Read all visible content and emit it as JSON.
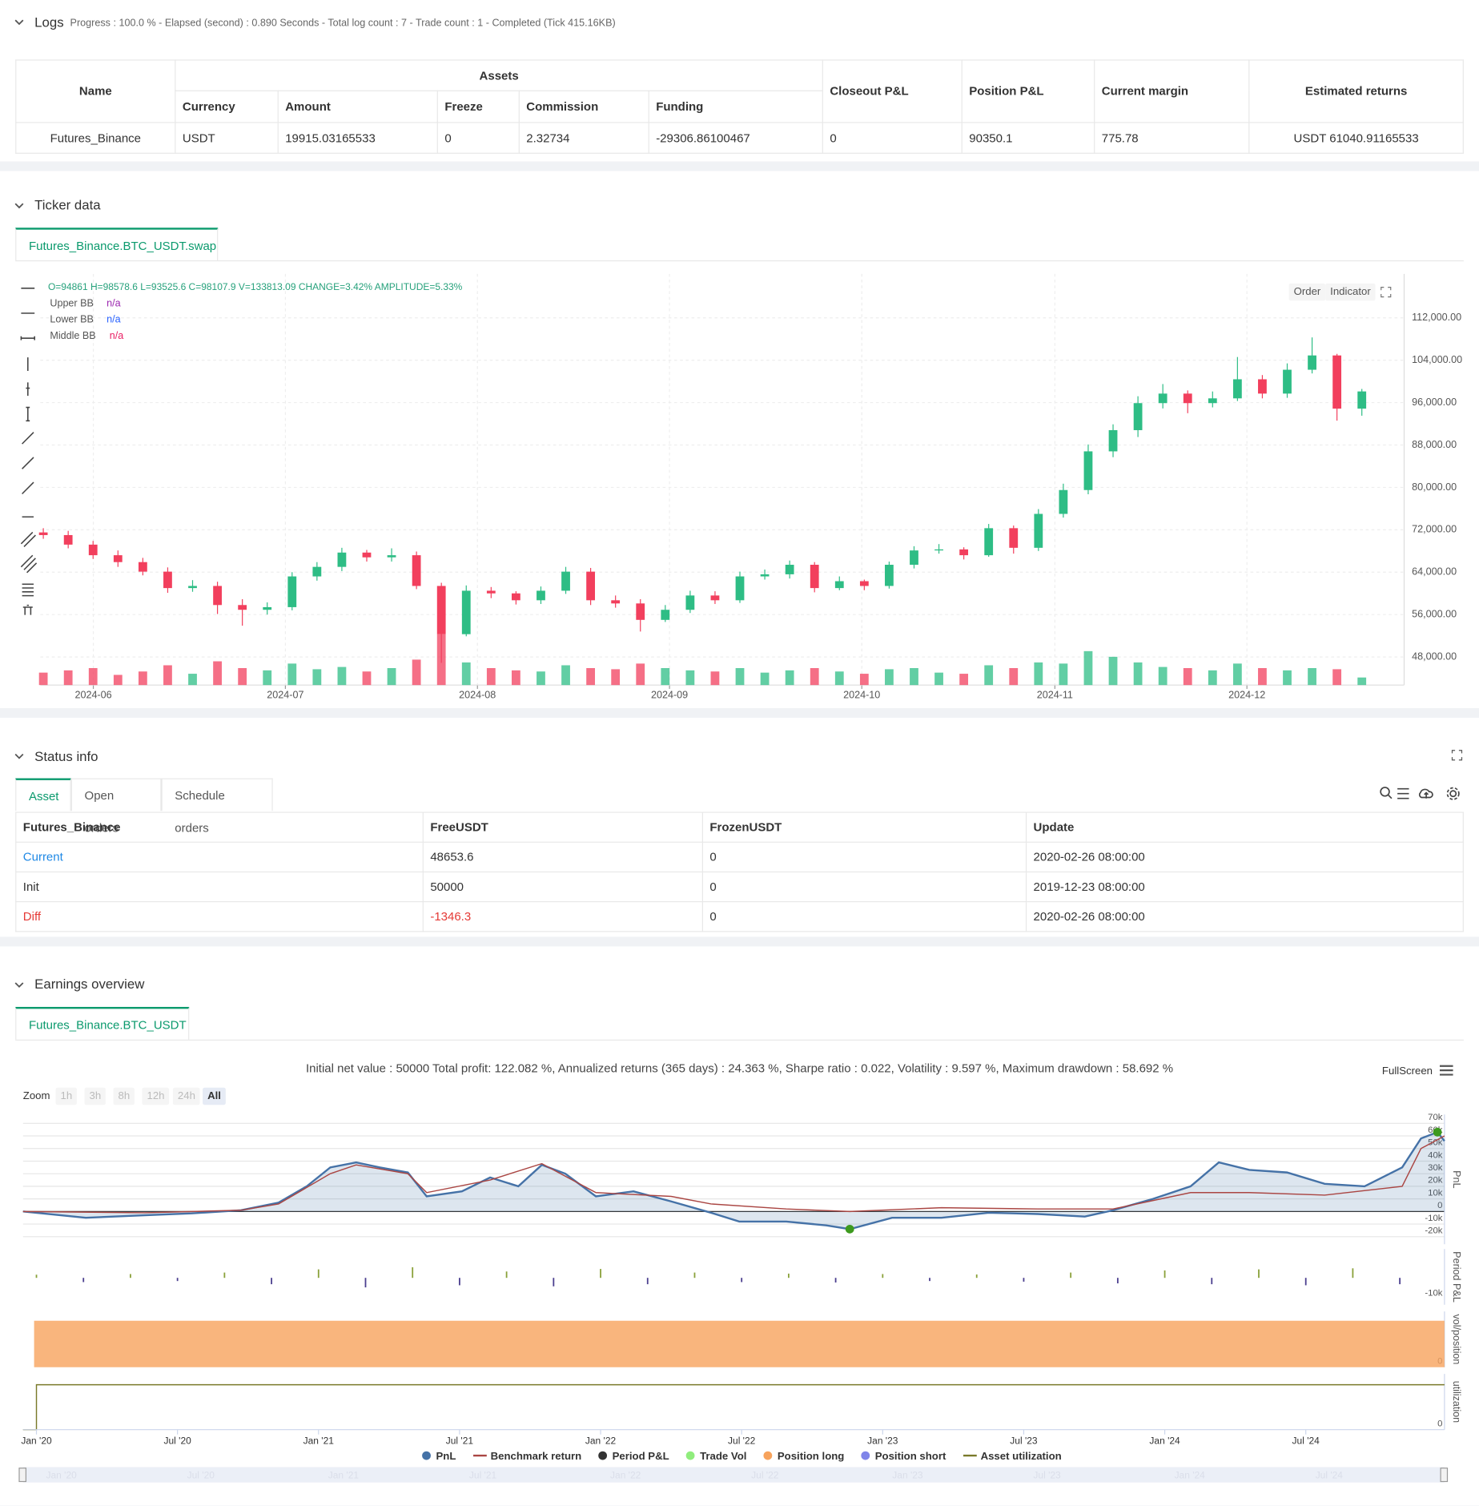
{
  "logs": {
    "title": "Logs",
    "summary": "Progress : 100.0 % - Elapsed (second) : 0.890  Seconds - Total log count : 7 - Trade count : 1 - Completed (Tick 415.16KB)",
    "table": {
      "columns": [
        "Name",
        "Assets",
        "Closeout P&L",
        "Position P&L",
        "Current margin",
        "Estimated returns"
      ],
      "asset_columns": [
        "Currency",
        "Amount",
        "Freeze",
        "Commission",
        "Funding"
      ],
      "rows": [
        [
          "Futures_Binance",
          "USDT",
          "19915.03165533",
          "0",
          "2.32734",
          "-29306.86100467",
          "0",
          "90350.1",
          "775.78",
          "USDT 61040.91165533"
        ]
      ]
    }
  },
  "ticker": {
    "title": "Ticker data",
    "tab": "Futures_Binance.BTC_USDT.swap",
    "buttons": [
      "Order",
      "Indicator"
    ]
  },
  "status": {
    "title": "Status info",
    "tabs": [
      "Asset",
      "Open orders",
      "Schedule orders"
    ],
    "table": {
      "headers": [
        "Futures_Binance",
        "FreeUSDT",
        "FrozenUSDT",
        "Update"
      ],
      "rows": [
        [
          "Current",
          "48653.6",
          "0",
          "2020-02-26 08:00:00"
        ],
        [
          "Init",
          "50000",
          "0",
          "2019-12-23 08:00:00"
        ],
        [
          "Diff",
          "-1346.3",
          "0",
          "2020-02-26 08:00:00"
        ]
      ]
    }
  },
  "earnings": {
    "title": "Earnings overview",
    "tab": "Futures_Binance.BTC_USDT",
    "summary": "Initial net value : 50000 Total profit: 122.082 %, Annualized returns (365 days) : 24.363 %, Sharpe ratio : 0.022, Volatility : 9.597 %, Maximum drawdown : 58.692 %",
    "zoom_label": "Zoom",
    "zoom_buttons": [
      "1h",
      "3h",
      "8h",
      "12h",
      "24h",
      "All"
    ],
    "fullscreen": "FullScreen",
    "legend": [
      {
        "name": "Trade Vol",
        "color": "#90ed7d",
        "legend_symbol": "circle"
      },
      {
        "name": "Position short",
        "color": "#8085e9",
        "legend_symbol": "circle"
      }
    ]
  },
  "chart_data": [
    {
      "type": "candlestick",
      "info": "O=94861 H=98578.6 L=93525.6 C=98107.9 V=133813.09 CHANGE=3.42% AMPLITUDE=5.33%",
      "indicators": [
        {
          "name": "Upper BB",
          "value": "n/a",
          "color": "#9c27b0"
        },
        {
          "name": "Lower BB",
          "value": "n/a",
          "color": "#2962ff"
        },
        {
          "name": "Middle BB",
          "value": "n/a",
          "color": "#e91e63"
        }
      ],
      "up_color": "#2ebd85",
      "down_color": "#f23f5d",
      "categories": [
        null,
        null,
        null,
        null,
        null,
        null,
        null,
        null,
        null,
        null,
        null,
        null,
        null,
        null,
        null,
        null,
        null,
        null,
        null,
        null,
        null,
        null,
        null,
        null,
        null,
        null,
        null,
        null,
        null,
        null,
        null,
        null,
        null,
        null,
        null,
        null,
        null,
        null,
        null,
        null,
        null,
        null,
        null,
        null,
        null,
        null,
        null,
        null,
        null,
        null,
        null,
        null,
        null,
        null
      ],
      "open": [
        71500,
        71000,
        69200,
        67200,
        65900,
        64100,
        61000,
        61400,
        57800,
        56900,
        57400,
        63200,
        65000,
        67700,
        66800,
        67200,
        61400,
        52300,
        60500,
        60000,
        58700,
        60500,
        64100,
        58700,
        58100,
        55000,
        56900,
        59600,
        58700,
        63200,
        63600,
        65400,
        61000,
        62300,
        61400,
        65400,
        68100,
        68300,
        67200,
        72300,
        68600,
        75000,
        79500,
        86800,
        90800,
        95900,
        97700,
        95900,
        96800,
        100400,
        97700,
        102200,
        104900,
        94861
      ],
      "high": [
        72300,
        71800,
        69900,
        68100,
        66700,
        64900,
        62500,
        62200,
        58900,
        58300,
        64000,
        65900,
        68600,
        68200,
        68500,
        67900,
        62000,
        61500,
        61200,
        60400,
        61300,
        65000,
        64800,
        59600,
        58900,
        57800,
        60500,
        60400,
        64100,
        64500,
        66200,
        65900,
        63200,
        62600,
        66000,
        68900,
        69300,
        68700,
        73100,
        72800,
        75900,
        80700,
        88100,
        91900,
        97200,
        99500,
        98300,
        98100,
        104600,
        101200,
        103400,
        108300,
        105200,
        98578.6
      ],
      "low": [
        70300,
        68500,
        66500,
        65000,
        63400,
        60100,
        60300,
        56100,
        53900,
        56000,
        56800,
        62400,
        64200,
        66000,
        66000,
        60800,
        46900,
        51900,
        59100,
        57900,
        58000,
        59900,
        57800,
        57300,
        52800,
        54600,
        56300,
        58000,
        58200,
        62600,
        62800,
        60200,
        60600,
        60600,
        60900,
        64700,
        67500,
        66400,
        66900,
        67500,
        68000,
        74300,
        78700,
        85700,
        89500,
        94900,
        94000,
        95100,
        96300,
        96800,
        96900,
        101500,
        92600,
        93525.6
      ],
      "close": [
        71000,
        69200,
        67200,
        65900,
        64100,
        61000,
        61400,
        57800,
        56900,
        57400,
        63200,
        65000,
        67700,
        66800,
        67200,
        61400,
        52300,
        60500,
        60000,
        58700,
        60500,
        64100,
        58700,
        58100,
        55000,
        56900,
        59600,
        58700,
        63200,
        63600,
        65400,
        61000,
        62300,
        61400,
        65400,
        68100,
        68300,
        67200,
        72300,
        68600,
        75000,
        79500,
        86800,
        90800,
        95900,
        97700,
        95900,
        96800,
        100400,
        97700,
        102200,
        104900,
        94861,
        98107.9
      ],
      "volume": [
        220000,
        260000,
        300000,
        180000,
        240000,
        350000,
        200000,
        420000,
        300000,
        260000,
        380000,
        280000,
        320000,
        240000,
        300000,
        450000,
        900000,
        400000,
        300000,
        260000,
        240000,
        350000,
        300000,
        280000,
        380000,
        300000,
        260000,
        240000,
        300000,
        220000,
        260000,
        300000,
        240000,
        200000,
        280000,
        300000,
        220000,
        200000,
        350000,
        300000,
        400000,
        380000,
        600000,
        500000,
        400000,
        320000,
        300000,
        260000,
        380000,
        300000,
        260000,
        300000,
        280000,
        133813.09
      ],
      "volume_lim": [
        0,
        1700000
      ],
      "xlim": [
        -0.12,
        54.7
      ],
      "xticks": [
        {
          "value": 2.01,
          "label": "2024-06"
        },
        {
          "value": 9.73,
          "label": "2024-07"
        },
        {
          "value": 17.45,
          "label": "2024-08"
        },
        {
          "value": 25.17,
          "label": "2024-09"
        },
        {
          "value": 32.9,
          "label": "2024-10"
        },
        {
          "value": 40.66,
          "label": "2024-11"
        },
        {
          "value": 48.38,
          "label": "2024-12"
        }
      ],
      "ylim": [
        42700,
        120300
      ],
      "yticks": [
        {
          "value": 48000,
          "label": "48,000.00"
        },
        {
          "value": 56000,
          "label": "56,000.00"
        },
        {
          "value": 64000,
          "label": "64,000.00"
        },
        {
          "value": 72000,
          "label": "72,000.00"
        },
        {
          "value": 80000,
          "label": "80,000.00"
        },
        {
          "value": 88000,
          "label": "88,000.00"
        },
        {
          "value": 96000,
          "label": "96,000.00"
        },
        {
          "value": 104000,
          "label": "104,000.00"
        },
        {
          "value": 112000,
          "label": "112,000.00"
        }
      ],
      "grid": true
    },
    {
      "type": "line",
      "axis_title": "PnL",
      "xlim": [
        -0.57,
        59.9
      ],
      "ylim": [
        -26000,
        77000
      ],
      "grid": true,
      "extremes_color": "#3d9a1e",
      "yticks": [
        {
          "value": -20000,
          "label": "-20k"
        },
        {
          "value": -10000,
          "label": "-10k"
        },
        0,
        {
          "value": 10000,
          "label": "10k"
        },
        {
          "value": 20000,
          "label": "20k"
        },
        {
          "value": 30000,
          "label": "30k"
        },
        {
          "value": 40000,
          "label": "40k"
        },
        {
          "value": 50000,
          "label": "50k"
        },
        {
          "value": 60000,
          "label": "60k"
        },
        {
          "value": 70000,
          "label": "70k"
        }
      ],
      "series": [
        {
          "name": "PnL",
          "color": "#4572a7",
          "legend_symbol": "circle",
          "area": true,
          "x": [
            -0.57,
            2.1,
            4.6,
            6.6,
            8.7,
            10.3,
            11.5,
            12.5,
            13.6,
            14.6,
            15.8,
            16.6,
            18.1,
            19.3,
            20.5,
            21.5,
            22.5,
            23.8,
            25.4,
            27.0,
            28.7,
            29.9,
            31.9,
            33.6,
            34.6,
            36.4,
            38.5,
            40.5,
            42.6,
            44.6,
            45.8,
            47.5,
            49.1,
            50.3,
            51.6,
            53.2,
            54.8,
            56.5,
            58.1,
            58.9,
            59.6,
            59.9
          ],
          "values": [
            0,
            -5000,
            -3000,
            -1500,
            1000,
            7000,
            20000,
            35000,
            39000,
            35000,
            31000,
            12000,
            16000,
            27000,
            20000,
            37000,
            30000,
            12000,
            16000,
            8000,
            -1000,
            -8000,
            -8000,
            -11000,
            -14000,
            -5000,
            -5000,
            -1000,
            -2000,
            -4000,
            1000,
            10000,
            20000,
            39000,
            33000,
            31000,
            22000,
            20000,
            35000,
            58000,
            63000,
            56000
          ]
        },
        {
          "name": "Benchmark return",
          "color": "#aa4643",
          "legend_symbol": "line",
          "x": [
            -0.57,
            4.6,
            8.7,
            10.3,
            12.5,
            13.6,
            15.8,
            16.6,
            19.3,
            21.5,
            23.8,
            27.0,
            28.7,
            31.9,
            34.6,
            38.5,
            42.6,
            45.8,
            49.1,
            51.6,
            54.8,
            58.1,
            58.9,
            59.9
          ],
          "values": [
            0,
            -1000,
            1000,
            6000,
            30000,
            37000,
            30000,
            15000,
            25000,
            38000,
            15000,
            12000,
            6000,
            2000,
            0,
            3000,
            2000,
            2000,
            15000,
            15000,
            13000,
            20000,
            50000,
            60000
          ]
        }
      ]
    },
    {
      "type": "bar",
      "axis_title": "Period P&L",
      "xlim": [
        -0.57,
        59.9
      ],
      "ylim": [
        -12700,
        13600
      ],
      "yticks": [
        {
          "value": -10000,
          "label": "-10k"
        }
      ],
      "series": [
        {
          "name": "Period P&L",
          "color": "#333333",
          "legend_symbol": "circle",
          "positive_color": "#8aa13a",
          "negative_color": "#4b3f8f",
          "x": [
            0,
            2,
            4,
            6,
            8,
            10,
            12,
            14,
            16,
            18,
            20,
            22,
            24,
            26,
            28,
            30,
            32,
            34,
            36,
            38,
            40,
            42,
            44,
            46,
            48,
            50,
            52,
            54,
            56,
            58
          ],
          "values": [
            1500,
            -2000,
            1800,
            -1500,
            2500,
            -3000,
            4000,
            -4500,
            5000,
            -3500,
            3000,
            -4000,
            4200,
            -3000,
            2500,
            -2000,
            2000,
            -2200,
            1800,
            -1500,
            1600,
            -1800,
            2500,
            -2600,
            3500,
            -3000,
            4000,
            -3500,
            4500,
            -3000
          ]
        }
      ]
    },
    {
      "type": "area",
      "axis_title": "vol/position",
      "xlim": [
        -0.57,
        59.9
      ],
      "ylim": [
        0,
        1.2
      ],
      "yticks": [
        0
      ],
      "series": [
        {
          "name": "Position long",
          "color": "#f7a35c",
          "legend_symbol": "circle",
          "x": [
            -0.1,
            59.9
          ],
          "values": [
            1,
            1
          ]
        }
      ]
    },
    {
      "type": "line",
      "axis_title": "utilization",
      "xlim": [
        -0.57,
        59.9
      ],
      "ylim": [
        0,
        1.24
      ],
      "yticks": [
        0
      ],
      "xticks": [
        {
          "value": 0,
          "label": "Jan '20"
        },
        {
          "value": 6,
          "label": "Jul '20"
        },
        {
          "value": 12,
          "label": "Jan '21"
        },
        {
          "value": 18,
          "label": "Jul '21"
        },
        {
          "value": 24,
          "label": "Jan '22"
        },
        {
          "value": 30,
          "label": "Jul '22"
        },
        {
          "value": 36,
          "label": "Jan '23"
        },
        {
          "value": 42,
          "label": "Jul '23"
        },
        {
          "value": 48,
          "label": "Jan '24"
        },
        {
          "value": 54,
          "label": "Jul '24"
        }
      ],
      "series": [
        {
          "name": "Asset utilization",
          "color": "#7a7a2a",
          "legend_symbol": "line",
          "x": [
            -0.57,
            0,
            0,
            59.9
          ],
          "values": [
            0,
            0,
            1,
            1
          ]
        }
      ]
    }
  ]
}
